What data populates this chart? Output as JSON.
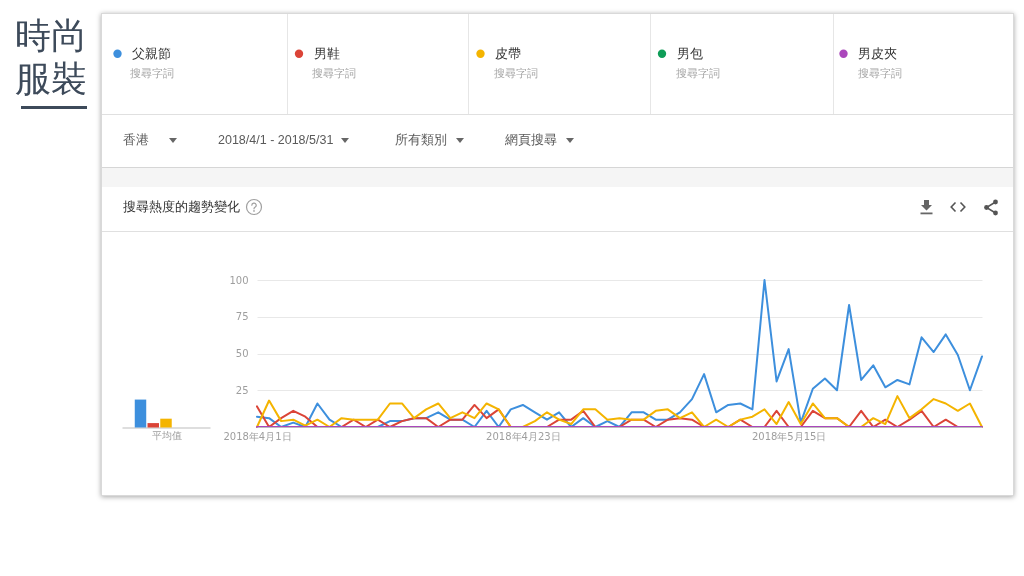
{
  "chart_data": [
    {
      "type": "other",
      "title": "時尚服裝",
      "annotations": [
        "香港",
        "2018/4/1 - 2018/5/31",
        "所有類別",
        "網頁搜尋"
      ]
    },
    {
      "type": "bar",
      "title": "搜尋熱度的趨勢變化",
      "categories": [
        null,
        null,
        null,
        null,
        null
      ],
      "values": [
        19,
        3,
        6,
        0,
        0
      ],
      "colors": [
        "#3d8fdd",
        "#db4437",
        "#f4b400",
        "#0f9d58",
        "#ab47bc"
      ],
      "ylim": [
        0,
        100
      ],
      "tick_labels": false,
      "xlabel": "平均值"
    },
    {
      "type": "line",
      "x": [
        "2018-04-01",
        "2018-04-02",
        "2018-04-03",
        "2018-04-04",
        "2018-04-05",
        "2018-04-06",
        "2018-04-07",
        "2018-04-08",
        "2018-04-09",
        "2018-04-10",
        "2018-04-11",
        "2018-04-12",
        "2018-04-13",
        "2018-04-14",
        "2018-04-15",
        "2018-04-16",
        "2018-04-17",
        "2018-04-18",
        "2018-04-19",
        "2018-04-20",
        "2018-04-21",
        "2018-04-22",
        "2018-04-23",
        "2018-04-24",
        "2018-04-25",
        "2018-04-26",
        "2018-04-27",
        "2018-04-28",
        "2018-04-29",
        "2018-04-30",
        "2018-05-01",
        "2018-05-02",
        "2018-05-03",
        "2018-05-04",
        "2018-05-05",
        "2018-05-06",
        "2018-05-07",
        "2018-05-08",
        "2018-05-09",
        "2018-05-10",
        "2018-05-11",
        "2018-05-12",
        "2018-05-13",
        "2018-05-14",
        "2018-05-15",
        "2018-05-16",
        "2018-05-17",
        "2018-05-18",
        "2018-05-19",
        "2018-05-20",
        "2018-05-21",
        "2018-05-22",
        "2018-05-23",
        "2018-05-24",
        "2018-05-25",
        "2018-05-26",
        "2018-05-27",
        "2018-05-28",
        "2018-05-29",
        "2018-05-30",
        "2018-05-31"
      ],
      "series": [
        {
          "name": "父親節",
          "color": "#3d8fdd",
          "values": [
            7,
            6,
            0,
            3,
            0,
            16,
            5,
            0,
            0,
            0,
            0,
            4,
            4,
            6,
            6,
            10,
            5,
            5,
            0,
            11,
            0,
            12,
            15,
            10,
            5,
            10,
            0,
            6,
            0,
            4,
            0,
            10,
            10,
            5,
            5,
            10,
            19,
            36,
            10,
            15,
            16,
            12,
            100,
            31,
            53,
            3,
            26,
            33,
            25,
            83,
            32,
            42,
            27,
            32,
            29,
            61,
            51,
            63,
            49,
            25,
            48
          ]
        },
        {
          "name": "男鞋",
          "color": "#db4437",
          "values": [
            14,
            0,
            6,
            11,
            7,
            0,
            0,
            0,
            5,
            0,
            5,
            0,
            4,
            6,
            6,
            0,
            5,
            5,
            15,
            6,
            12,
            0,
            0,
            0,
            0,
            5,
            5,
            11,
            0,
            0,
            0,
            5,
            5,
            0,
            5,
            6,
            5,
            0,
            0,
            0,
            5,
            0,
            0,
            11,
            0,
            0,
            11,
            6,
            6,
            0,
            11,
            0,
            5,
            0,
            5,
            11,
            0,
            5,
            0,
            0,
            0
          ]
        },
        {
          "name": "皮帶",
          "color": "#f4b400",
          "values": [
            0,
            18,
            4,
            5,
            1,
            5,
            0,
            6,
            5,
            5,
            5,
            16,
            16,
            6,
            12,
            16,
            6,
            10,
            6,
            16,
            12,
            0,
            0,
            4,
            10,
            5,
            2,
            12,
            12,
            5,
            6,
            5,
            5,
            11,
            12,
            6,
            10,
            0,
            5,
            0,
            5,
            7,
            12,
            2,
            17,
            2,
            16,
            6,
            6,
            0,
            0,
            6,
            2,
            21,
            6,
            12,
            19,
            16,
            11,
            16,
            0
          ]
        },
        {
          "name": "男包",
          "color": "#0f9d58",
          "values": [
            null,
            null,
            null,
            null,
            null,
            null,
            null,
            null,
            null,
            null,
            null,
            null,
            null,
            null,
            null,
            null,
            null,
            null,
            null,
            null,
            null,
            null,
            null,
            null,
            null,
            null,
            null,
            null,
            null,
            null,
            null,
            null,
            null,
            null,
            null,
            null,
            null,
            null,
            null,
            null,
            null,
            null,
            null,
            null,
            null,
            null,
            null,
            null,
            null,
            null,
            null,
            null,
            null,
            null,
            null,
            null,
            null,
            null,
            null,
            null,
            null
          ]
        },
        {
          "name": "男皮夾",
          "color": "#ab47bc",
          "values": [
            0,
            0,
            0,
            0,
            0,
            0,
            0,
            0,
            0,
            0,
            0,
            0,
            0,
            0,
            0,
            0,
            0,
            0,
            0,
            0,
            0,
            0,
            0,
            0,
            0,
            0,
            0,
            0,
            0,
            0,
            0,
            0,
            0,
            0,
            0,
            0,
            0,
            0,
            0,
            0,
            0,
            0,
            0,
            0,
            0,
            0,
            0,
            0,
            0,
            0,
            0,
            0,
            0,
            0,
            0,
            0,
            0,
            0,
            0,
            0,
            0
          ]
        }
      ],
      "xlim": [
        "2018-04-01",
        "2018-05-31"
      ],
      "xticks": [
        {
          "value": "2018-04-01",
          "label": "2018年4月1日"
        },
        {
          "value": "2018-04-23",
          "label": "2018年4月23日"
        },
        {
          "value": "2018-05-15",
          "label": "2018年5月15日"
        }
      ],
      "ylim": [
        0,
        100
      ],
      "yticks": [
        25,
        50,
        75,
        100
      ],
      "grid": "y",
      "legend": "top",
      "annotations": [
        "搜尋字詞",
        "搜尋字詞",
        "搜尋字詞",
        "搜尋字詞",
        "搜尋字詞"
      ]
    }
  ]
}
